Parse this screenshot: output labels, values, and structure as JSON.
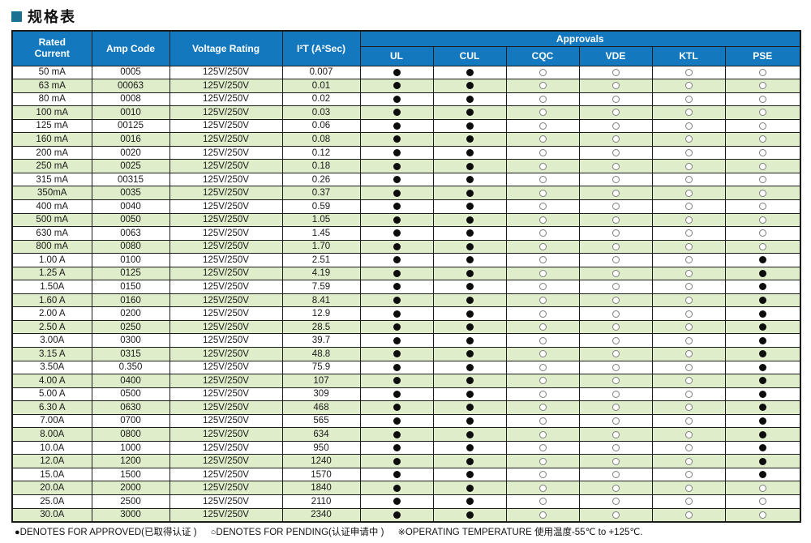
{
  "title": "规格表",
  "colors": {
    "header_blue": "#1478be",
    "row_green": "#dfedca",
    "title_square": "#1b7193"
  },
  "table": {
    "headers": {
      "rated_current": "Rated Current",
      "amp_code": "Amp Code",
      "voltage_rating": "Voltage Rating",
      "i2t": "I²T (A²Sec)",
      "approvals": "Approvals",
      "agencies": [
        "UL",
        "CUL",
        "CQC",
        "VDE",
        "KTL",
        "PSE"
      ]
    },
    "rows": [
      {
        "rated": "50 mA",
        "code": "0005",
        "voltage": "125V/250V",
        "i2t": "0.007",
        "approvals": [
          1,
          1,
          0,
          0,
          0,
          0
        ]
      },
      {
        "rated": "63 mA",
        "code": "00063",
        "voltage": "125V/250V",
        "i2t": "0.01",
        "approvals": [
          1,
          1,
          0,
          0,
          0,
          0
        ]
      },
      {
        "rated": "80 mA",
        "code": "0008",
        "voltage": "125V/250V",
        "i2t": "0.02",
        "approvals": [
          1,
          1,
          0,
          0,
          0,
          0
        ]
      },
      {
        "rated": "100 mA",
        "code": "0010",
        "voltage": "125V/250V",
        "i2t": "0.03",
        "approvals": [
          1,
          1,
          0,
          0,
          0,
          0
        ]
      },
      {
        "rated": "125 mA",
        "code": "00125",
        "voltage": "125V/250V",
        "i2t": "0.06",
        "approvals": [
          1,
          1,
          0,
          0,
          0,
          0
        ]
      },
      {
        "rated": "160 mA",
        "code": "0016",
        "voltage": "125V/250V",
        "i2t": "0.08",
        "approvals": [
          1,
          1,
          0,
          0,
          0,
          0
        ]
      },
      {
        "rated": "200 mA",
        "code": "0020",
        "voltage": "125V/250V",
        "i2t": "0.12",
        "approvals": [
          1,
          1,
          0,
          0,
          0,
          0
        ]
      },
      {
        "rated": "250 mA",
        "code": "0025",
        "voltage": "125V/250V",
        "i2t": "0.18",
        "approvals": [
          1,
          1,
          0,
          0,
          0,
          0
        ]
      },
      {
        "rated": "315 mA",
        "code": "00315",
        "voltage": "125V/250V",
        "i2t": "0.26",
        "approvals": [
          1,
          1,
          0,
          0,
          0,
          0
        ]
      },
      {
        "rated": "350mA",
        "code": "0035",
        "voltage": "125V/250V",
        "i2t": "0.37",
        "approvals": [
          1,
          1,
          0,
          0,
          0,
          0
        ]
      },
      {
        "rated": "400 mA",
        "code": "0040",
        "voltage": "125V/250V",
        "i2t": "0.59",
        "approvals": [
          1,
          1,
          0,
          0,
          0,
          0
        ]
      },
      {
        "rated": "500 mA",
        "code": "0050",
        "voltage": "125V/250V",
        "i2t": "1.05",
        "approvals": [
          1,
          1,
          0,
          0,
          0,
          0
        ]
      },
      {
        "rated": "630 mA",
        "code": "0063",
        "voltage": "125V/250V",
        "i2t": "1.45",
        "approvals": [
          1,
          1,
          0,
          0,
          0,
          0
        ]
      },
      {
        "rated": "800 mA",
        "code": "0080",
        "voltage": "125V/250V",
        "i2t": "1.70",
        "approvals": [
          1,
          1,
          0,
          0,
          0,
          0
        ]
      },
      {
        "rated": "1.00 A",
        "code": "0100",
        "voltage": "125V/250V",
        "i2t": "2.51",
        "approvals": [
          1,
          1,
          0,
          0,
          0,
          1
        ]
      },
      {
        "rated": "1.25 A",
        "code": "0125",
        "voltage": "125V/250V",
        "i2t": "4.19",
        "approvals": [
          1,
          1,
          0,
          0,
          0,
          1
        ]
      },
      {
        "rated": "1.50A",
        "code": "0150",
        "voltage": "125V/250V",
        "i2t": "7.59",
        "approvals": [
          1,
          1,
          0,
          0,
          0,
          1
        ]
      },
      {
        "rated": "1.60 A",
        "code": "0160",
        "voltage": "125V/250V",
        "i2t": "8.41",
        "approvals": [
          1,
          1,
          0,
          0,
          0,
          1
        ]
      },
      {
        "rated": "2.00 A",
        "code": "0200",
        "voltage": "125V/250V",
        "i2t": "12.9",
        "approvals": [
          1,
          1,
          0,
          0,
          0,
          1
        ]
      },
      {
        "rated": "2.50 A",
        "code": "0250",
        "voltage": "125V/250V",
        "i2t": "28.5",
        "approvals": [
          1,
          1,
          0,
          0,
          0,
          1
        ]
      },
      {
        "rated": "3.00A",
        "code": "0300",
        "voltage": "125V/250V",
        "i2t": "39.7",
        "approvals": [
          1,
          1,
          0,
          0,
          0,
          1
        ]
      },
      {
        "rated": "3.15 A",
        "code": "0315",
        "voltage": "125V/250V",
        "i2t": "48.8",
        "approvals": [
          1,
          1,
          0,
          0,
          0,
          1
        ]
      },
      {
        "rated": "3.50A",
        "code": "0.350",
        "voltage": "125V/250V",
        "i2t": "75.9",
        "approvals": [
          1,
          1,
          0,
          0,
          0,
          1
        ]
      },
      {
        "rated": "4.00 A",
        "code": "0400",
        "voltage": "125V/250V",
        "i2t": "107",
        "approvals": [
          1,
          1,
          0,
          0,
          0,
          1
        ]
      },
      {
        "rated": "5.00 A",
        "code": "0500",
        "voltage": "125V/250V",
        "i2t": "309",
        "approvals": [
          1,
          1,
          0,
          0,
          0,
          1
        ]
      },
      {
        "rated": "6.30 A",
        "code": "0630",
        "voltage": "125V/250V",
        "i2t": "468",
        "approvals": [
          1,
          1,
          0,
          0,
          0,
          1
        ]
      },
      {
        "rated": "7.00A",
        "code": "0700",
        "voltage": "125V/250V",
        "i2t": "565",
        "approvals": [
          1,
          1,
          0,
          0,
          0,
          1
        ]
      },
      {
        "rated": "8.00A",
        "code": "0800",
        "voltage": "125V/250V",
        "i2t": "634",
        "approvals": [
          1,
          1,
          0,
          0,
          0,
          1
        ]
      },
      {
        "rated": "10.0A",
        "code": "1000",
        "voltage": "125V/250V",
        "i2t": "950",
        "approvals": [
          1,
          1,
          0,
          0,
          0,
          1
        ]
      },
      {
        "rated": "12.0A",
        "code": "1200",
        "voltage": "125V/250V",
        "i2t": "1240",
        "approvals": [
          1,
          1,
          0,
          0,
          0,
          1
        ]
      },
      {
        "rated": "15.0A",
        "code": "1500",
        "voltage": "125V/250V",
        "i2t": "1570",
        "approvals": [
          1,
          1,
          0,
          0,
          0,
          1
        ]
      },
      {
        "rated": "20.0A",
        "code": "2000",
        "voltage": "125V/250V",
        "i2t": "1840",
        "approvals": [
          1,
          1,
          0,
          0,
          0,
          0
        ]
      },
      {
        "rated": "25.0A",
        "code": "2500",
        "voltage": "125V/250V",
        "i2t": "2110",
        "approvals": [
          1,
          1,
          0,
          0,
          0,
          0
        ]
      },
      {
        "rated": "30.0A",
        "code": "3000",
        "voltage": "125V/250V",
        "i2t": "2340",
        "approvals": [
          1,
          1,
          0,
          0,
          0,
          0
        ]
      }
    ]
  },
  "legend": {
    "approved_symbol": "●",
    "approved_text": "DENOTES FOR APPROVED(已取得认证 )",
    "pending_symbol": "○",
    "pending_text": "DENOTES FOR PENDING(认证申请中 )",
    "note_symbol": "※",
    "note_text": "OPERATING TEMPERATURE 使用温度-55℃ to +125℃."
  }
}
